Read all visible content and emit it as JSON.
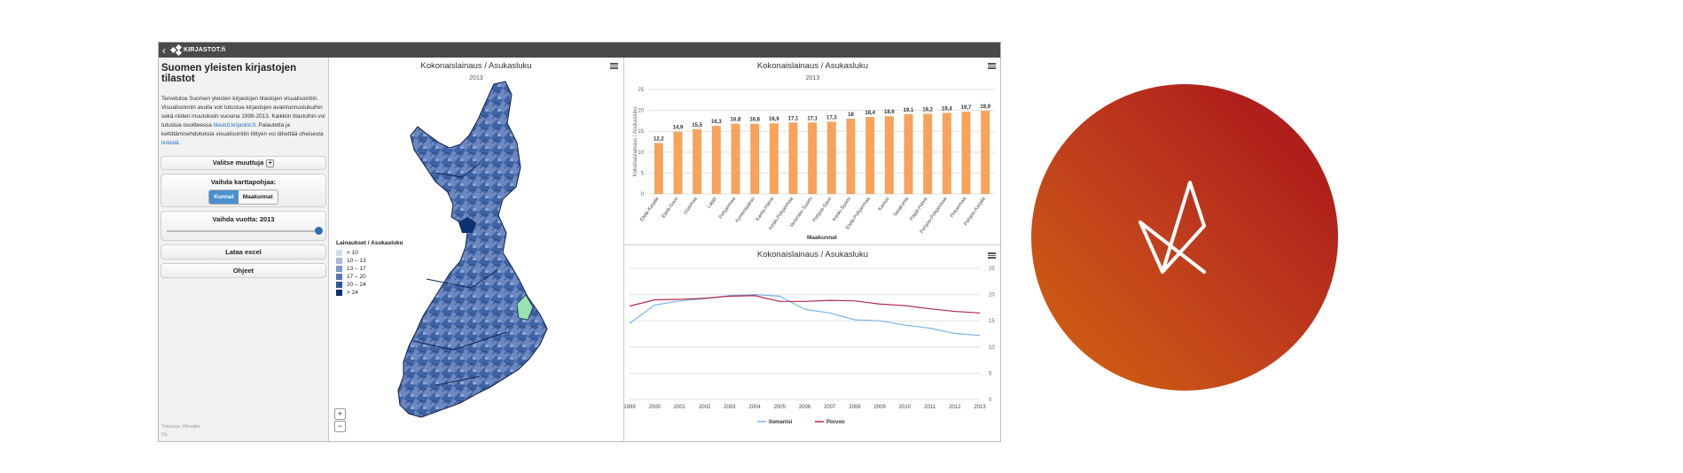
{
  "topbar": {
    "logo_text": "KIRJASTOT.fi",
    "back_icon": "chevron-left-icon"
  },
  "sidebar": {
    "title": "Suomen yleisten kirjastojen tilastot",
    "intro_lines": [
      "Tervetuloa Suomen yleisten kirjastojen tilastojen visualisointiin.",
      "Visualisoinnin avulla voit tutustua kirjastojen avainlunnuslukuihin",
      "sekä niiden muutoksiin vuosina 1999-2013. Kaikkiin tilastoihin voi"
    ],
    "intro_line4_prefix": "tutustua osoitteessa ",
    "intro_link": "tilastot.kirjastot.fi",
    "intro_line4_suffix": ". Palautetta ja",
    "intro_line5": "kehittämisehdotuksia visualisointiin liittyen voi lähettää oheisesta",
    "intro_link2": "linkistä",
    "select_variable": "Valitse muuttuja",
    "change_map_label": "Vaihda karttapohjaa:",
    "map_options": [
      "Kunnat",
      "Maakunnat"
    ],
    "year_label": "Vaihda vuotta: 2013",
    "download_excel": "Lataa excel",
    "instructions": "Ohjeet",
    "footer_line1": "Toteutus: Wiredlin",
    "footer_line2": "Oy"
  },
  "map": {
    "title": "Kokonaislainaus / Asukasluku",
    "subtitle": "2013",
    "legend_title": "Lainaukset / Asukasluku",
    "legend": [
      {
        "label": "< 10",
        "color": "#d4dcee"
      },
      {
        "label": "10 – 13",
        "color": "#a9b9dc"
      },
      {
        "label": "13 – 17",
        "color": "#7e96c8"
      },
      {
        "label": "17 – 20",
        "color": "#5677b4"
      },
      {
        "label": "20 – 24",
        "color": "#2f5797"
      },
      {
        "label": "> 24",
        "color": "#0d3273"
      }
    ],
    "zoom_in": "+",
    "zoom_out": "−"
  },
  "chart_data": [
    {
      "type": "bar",
      "title": "Kokonaislainaus / Asukasluku",
      "subtitle": "2013",
      "xlabel": "Maakunnat",
      "ylabel": "Kokonaislainaus / Asukasluku",
      "ylim": [
        0,
        25
      ],
      "yticks": [
        0,
        5,
        10,
        15,
        20,
        25
      ],
      "color": "#f7a35c",
      "categories": [
        "Etelä-Karjala",
        "Etelä-Savo",
        "Uusimaa",
        "Lappi",
        "Pohjanmaa",
        "Kymenlaakso",
        "Kanta-Häme",
        "Keski-Pohjanmaa",
        "Varsinais-Suomi",
        "Pohjois-Savo",
        "Keski-Suomi",
        "Etelä-Pohjanmaa",
        "Kainuu",
        "Satakunta",
        "Päijät-Häme",
        "Pohjois-Pohjanmaa",
        "Pirkanmaa",
        "Pohjois-Karjala"
      ],
      "values": [
        12.2,
        14.9,
        15.5,
        16.3,
        16.8,
        16.8,
        16.9,
        17.1,
        17.1,
        17.3,
        18,
        18.4,
        18.6,
        19.1,
        19.2,
        19.4,
        19.7,
        19.9
      ],
      "labels": [
        "12,2",
        "14,9",
        "15,5",
        "16,3",
        "16,8",
        "16,8",
        "16,9",
        "17,1",
        "17,1",
        "17,3",
        "18",
        "18,4",
        "18,6",
        "19,1",
        "19,2",
        "19,4",
        "19,7",
        "19,9"
      ]
    },
    {
      "type": "line",
      "title": "Kokonaislainaus / Asukasluku",
      "x": [
        1999,
        2000,
        2001,
        2002,
        2003,
        2004,
        2005,
        2006,
        2007,
        2008,
        2009,
        2010,
        2011,
        2012,
        2013
      ],
      "ylim": [
        0,
        25
      ],
      "yticks": [
        0,
        5,
        10,
        15,
        20,
        25
      ],
      "series": [
        {
          "name": "Ilomantsi",
          "color": "#7cb5ec",
          "values": [
            14.5,
            18,
            18.8,
            19.2,
            19.8,
            20,
            19.7,
            17.2,
            16.5,
            15.2,
            15,
            14.2,
            13.6,
            12.6,
            12.2
          ]
        },
        {
          "name": "Porvoo",
          "color": "#b4284d",
          "values": [
            17.8,
            19,
            19.1,
            19.3,
            19.7,
            19.8,
            18.7,
            18.7,
            18.9,
            18.8,
            18.2,
            17.9,
            17.3,
            16.8,
            16.5
          ]
        }
      ]
    }
  ]
}
